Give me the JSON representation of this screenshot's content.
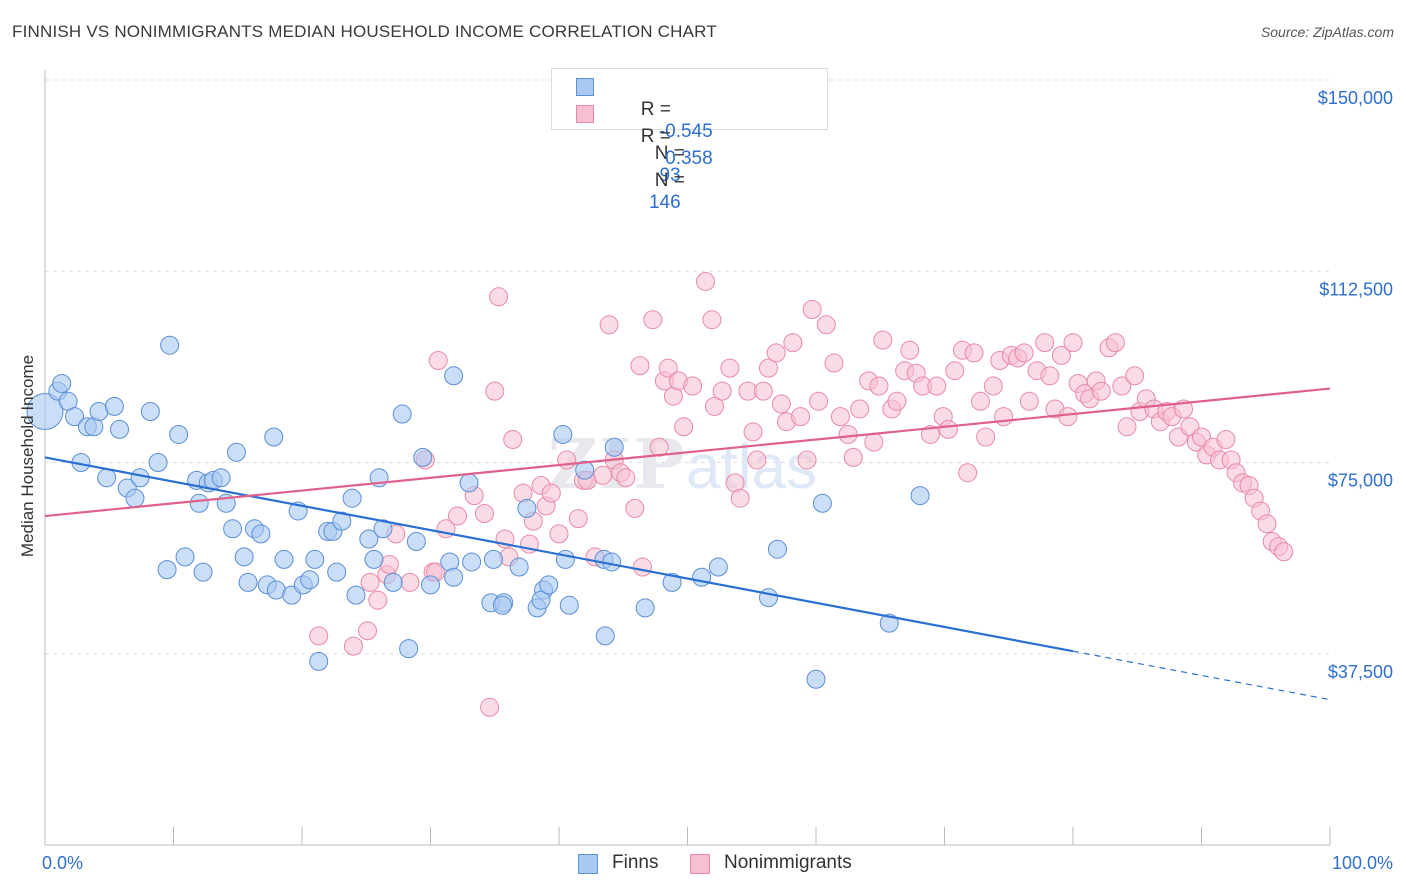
{
  "title": "FINNISH VS NONIMMIGRANTS MEDIAN HOUSEHOLD INCOME CORRELATION CHART",
  "source": "Source: ZipAtlas.com",
  "watermark": "ZIPatlas",
  "legend": {
    "rows": [
      {
        "r_label": "R =",
        "r_value": "-0.545",
        "n_label": "N =",
        "n_value": "93"
      },
      {
        "r_label": "R =",
        "r_value": "0.358",
        "n_label": "N =",
        "n_value": "146"
      }
    ],
    "bottom": [
      "Finns",
      "Nonimmigrants"
    ]
  },
  "colors": {
    "finns_fill": "#a9c8f2",
    "finns_stroke": "#5b8fd6",
    "finns_line": "#2a6fd4",
    "nonimm_fill": "#f8bfd0",
    "nonimm_stroke": "#e88aa8",
    "nonimm_line": "#e0608c",
    "axis_label_blue": "#2e6fd0",
    "grid": "#dddddd"
  },
  "chart_data": {
    "type": "scatter",
    "title": "FINNISH VS NONIMMIGRANTS MEDIAN HOUSEHOLD INCOME CORRELATION CHART",
    "xlabel": "",
    "ylabel": "Median Household Income",
    "xlim": [
      0,
      100
    ],
    "ylim": [
      0,
      150000
    ],
    "x_tick_labels": [
      "0.0%",
      "100.0%"
    ],
    "y_ticks": [
      37500,
      75000,
      112500,
      150000
    ],
    "y_tick_labels": [
      "$37,500",
      "$75,000",
      "$112,500",
      "$150,000"
    ],
    "grid": "horizontal dashed",
    "legend_position": "top-center",
    "series": [
      {
        "name": "Finns",
        "r": -0.545,
        "n": 93,
        "trend": {
          "x0": 0,
          "y0": 76000,
          "x1": 80,
          "y1": 38000,
          "dashed_to_x": 100,
          "dashed_to_y": 28500
        },
        "points": [
          [
            0,
            85000
          ],
          [
            1,
            89000
          ],
          [
            1.3,
            90500
          ],
          [
            1.8,
            87000
          ],
          [
            2.3,
            84000
          ],
          [
            2.8,
            75000
          ],
          [
            3.3,
            82000
          ],
          [
            3.8,
            82000
          ],
          [
            4.2,
            85000
          ],
          [
            4.8,
            72000
          ],
          [
            5.4,
            86000
          ],
          [
            5.8,
            81500
          ],
          [
            6.4,
            70000
          ],
          [
            7.0,
            68000
          ],
          [
            7.4,
            72000
          ],
          [
            8.2,
            85000
          ],
          [
            8.8,
            75000
          ],
          [
            9.7,
            98000
          ],
          [
            9.5,
            54000
          ],
          [
            10.4,
            80500
          ],
          [
            10.9,
            56500
          ],
          [
            11.8,
            71500
          ],
          [
            12.0,
            67000
          ],
          [
            12.3,
            53500
          ],
          [
            12.7,
            71000
          ],
          [
            13.1,
            71500
          ],
          [
            13.7,
            72000
          ],
          [
            14.1,
            67000
          ],
          [
            14.6,
            62000
          ],
          [
            14.9,
            77000
          ],
          [
            15.5,
            56500
          ],
          [
            15.8,
            51500
          ],
          [
            16.3,
            62000
          ],
          [
            16.8,
            61000
          ],
          [
            17.3,
            51000
          ],
          [
            17.8,
            80000
          ],
          [
            18.0,
            50000
          ],
          [
            18.6,
            56000
          ],
          [
            19.2,
            49000
          ],
          [
            19.7,
            65500
          ],
          [
            20.1,
            51000
          ],
          [
            20.6,
            52000
          ],
          [
            21.0,
            56000
          ],
          [
            21.3,
            36000
          ],
          [
            22.0,
            61500
          ],
          [
            22.7,
            53500
          ],
          [
            22.4,
            61500
          ],
          [
            23.1,
            63500
          ],
          [
            23.9,
            68000
          ],
          [
            24.2,
            49000
          ],
          [
            25.2,
            60000
          ],
          [
            25.6,
            56000
          ],
          [
            26.0,
            72000
          ],
          [
            26.3,
            62000
          ],
          [
            27.1,
            51500
          ],
          [
            27.8,
            84500
          ],
          [
            28.3,
            38500
          ],
          [
            28.9,
            59500
          ],
          [
            29.4,
            76000
          ],
          [
            30.0,
            51000
          ],
          [
            31.5,
            55500
          ],
          [
            31.8,
            52500
          ],
          [
            31.8,
            92000
          ],
          [
            33.0,
            71000
          ],
          [
            33.2,
            55500
          ],
          [
            34.7,
            47500
          ],
          [
            34.9,
            56000
          ],
          [
            35.7,
            47500
          ],
          [
            35.6,
            47000
          ],
          [
            36.9,
            54500
          ],
          [
            37.5,
            66000
          ],
          [
            38.3,
            46500
          ],
          [
            38.8,
            50000
          ],
          [
            38.6,
            48000
          ],
          [
            39.2,
            51000
          ],
          [
            40.3,
            80500
          ],
          [
            40.5,
            56000
          ],
          [
            40.8,
            47000
          ],
          [
            42.0,
            73500
          ],
          [
            43.5,
            56000
          ],
          [
            43.6,
            41000
          ],
          [
            44.1,
            55500
          ],
          [
            44.3,
            78000
          ],
          [
            46.7,
            46500
          ],
          [
            48.8,
            51500
          ],
          [
            51.1,
            52500
          ],
          [
            52.4,
            54500
          ],
          [
            56.3,
            48500
          ],
          [
            57.0,
            58000
          ],
          [
            60.0,
            32500
          ],
          [
            60.5,
            67000
          ],
          [
            65.7,
            43500
          ],
          [
            68.1,
            68500
          ]
        ]
      },
      {
        "name": "Nonimmigrants",
        "r": 0.358,
        "n": 146,
        "trend": {
          "x0": 0,
          "y0": 64500,
          "x1": 100,
          "y1": 89500
        },
        "points": [
          [
            21.3,
            41000
          ],
          [
            24.0,
            39000
          ],
          [
            25.1,
            42000
          ],
          [
            25.3,
            51500
          ],
          [
            25.9,
            48000
          ],
          [
            26.6,
            53000
          ],
          [
            26.8,
            55000
          ],
          [
            27.3,
            61000
          ],
          [
            28.4,
            51500
          ],
          [
            29.6,
            75500
          ],
          [
            30.2,
            53500
          ],
          [
            30.4,
            53500
          ],
          [
            30.6,
            95000
          ],
          [
            31.2,
            62000
          ],
          [
            32.1,
            64500
          ],
          [
            33.4,
            68500
          ],
          [
            34.2,
            65000
          ],
          [
            34.6,
            27000
          ],
          [
            35.0,
            89000
          ],
          [
            35.3,
            107500
          ],
          [
            35.8,
            60000
          ],
          [
            36.1,
            56500
          ],
          [
            36.4,
            79500
          ],
          [
            37.2,
            69000
          ],
          [
            37.7,
            59000
          ],
          [
            38.0,
            63500
          ],
          [
            38.6,
            70500
          ],
          [
            39.0,
            66500
          ],
          [
            39.4,
            69000
          ],
          [
            40.0,
            61000
          ],
          [
            40.6,
            75500
          ],
          [
            41.5,
            64000
          ],
          [
            41.9,
            71500
          ],
          [
            42.2,
            71500
          ],
          [
            42.8,
            56500
          ],
          [
            43.4,
            72500
          ],
          [
            43.9,
            102000
          ],
          [
            44.3,
            75500
          ],
          [
            44.8,
            73000
          ],
          [
            45.2,
            72000
          ],
          [
            45.9,
            66000
          ],
          [
            46.3,
            94000
          ],
          [
            46.5,
            54500
          ],
          [
            47.3,
            103000
          ],
          [
            47.8,
            78000
          ],
          [
            48.2,
            91000
          ],
          [
            48.5,
            93500
          ],
          [
            48.9,
            88000
          ],
          [
            49.3,
            91000
          ],
          [
            49.7,
            82000
          ],
          [
            50.4,
            90000
          ],
          [
            51.4,
            110500
          ],
          [
            51.9,
            103000
          ],
          [
            52.1,
            86000
          ],
          [
            52.7,
            89000
          ],
          [
            53.3,
            93500
          ],
          [
            53.7,
            71000
          ],
          [
            54.1,
            68000
          ],
          [
            54.7,
            89000
          ],
          [
            55.1,
            81000
          ],
          [
            55.4,
            75500
          ],
          [
            55.9,
            89000
          ],
          [
            56.3,
            93500
          ],
          [
            56.9,
            96500
          ],
          [
            57.3,
            86500
          ],
          [
            57.7,
            83000
          ],
          [
            58.2,
            98500
          ],
          [
            58.8,
            84000
          ],
          [
            59.3,
            75500
          ],
          [
            59.7,
            105000
          ],
          [
            60.2,
            87000
          ],
          [
            60.8,
            102000
          ],
          [
            61.4,
            94500
          ],
          [
            61.9,
            84000
          ],
          [
            62.5,
            80500
          ],
          [
            62.9,
            76000
          ],
          [
            63.4,
            85500
          ],
          [
            64.1,
            91000
          ],
          [
            64.5,
            79000
          ],
          [
            64.9,
            90000
          ],
          [
            65.2,
            99000
          ],
          [
            65.9,
            85500
          ],
          [
            66.3,
            87000
          ],
          [
            66.9,
            93000
          ],
          [
            67.3,
            97000
          ],
          [
            67.8,
            92500
          ],
          [
            68.3,
            90000
          ],
          [
            68.9,
            80500
          ],
          [
            69.4,
            90000
          ],
          [
            69.9,
            84000
          ],
          [
            70.3,
            81500
          ],
          [
            70.8,
            93000
          ],
          [
            71.4,
            97000
          ],
          [
            71.8,
            73000
          ],
          [
            72.3,
            96500
          ],
          [
            72.8,
            87000
          ],
          [
            73.2,
            80000
          ],
          [
            73.8,
            90000
          ],
          [
            74.3,
            95000
          ],
          [
            74.6,
            84000
          ],
          [
            75.2,
            96000
          ],
          [
            75.7,
            95500
          ],
          [
            76.2,
            96500
          ],
          [
            76.6,
            87000
          ],
          [
            77.2,
            93000
          ],
          [
            77.8,
            98500
          ],
          [
            78.2,
            92000
          ],
          [
            78.6,
            85500
          ],
          [
            79.1,
            96000
          ],
          [
            79.6,
            84000
          ],
          [
            80.0,
            98500
          ],
          [
            80.4,
            90500
          ],
          [
            80.9,
            88500
          ],
          [
            81.3,
            87500
          ],
          [
            81.8,
            91000
          ],
          [
            82.2,
            89000
          ],
          [
            82.8,
            97500
          ],
          [
            83.3,
            98500
          ],
          [
            83.8,
            90000
          ],
          [
            84.2,
            82000
          ],
          [
            84.8,
            92000
          ],
          [
            85.2,
            85000
          ],
          [
            85.7,
            87500
          ],
          [
            86.3,
            85500
          ],
          [
            86.8,
            83000
          ],
          [
            87.3,
            85000
          ],
          [
            87.7,
            84000
          ],
          [
            88.2,
            80000
          ],
          [
            88.6,
            85500
          ],
          [
            89.1,
            82000
          ],
          [
            89.6,
            79000
          ],
          [
            90.0,
            80000
          ],
          [
            90.4,
            76500
          ],
          [
            90.9,
            78000
          ],
          [
            91.4,
            75500
          ],
          [
            91.9,
            79500
          ],
          [
            92.3,
            75500
          ],
          [
            92.7,
            73000
          ],
          [
            93.2,
            71000
          ],
          [
            93.7,
            70500
          ],
          [
            94.1,
            68000
          ],
          [
            94.6,
            65500
          ],
          [
            95.1,
            63000
          ],
          [
            95.5,
            59500
          ],
          [
            96.0,
            58500
          ],
          [
            96.4,
            57500
          ]
        ]
      }
    ]
  }
}
